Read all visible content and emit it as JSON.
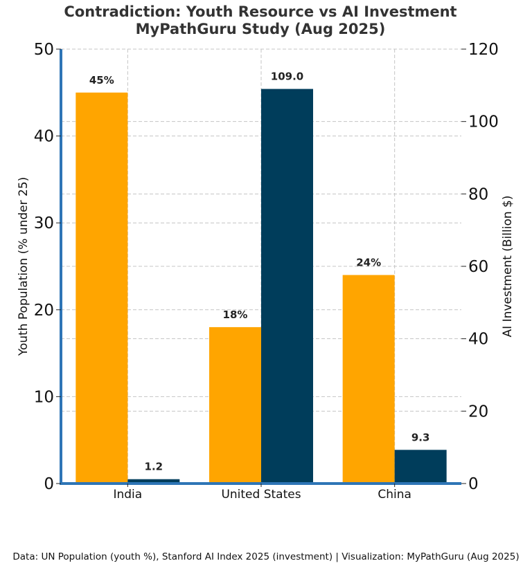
{
  "chart_data": {
    "type": "bar",
    "title_line1": "Contradiction: Youth Resource vs AI Investment",
    "title_line2": "MyPathGuru Study (Aug 2025)",
    "categories": [
      "India",
      "United States",
      "China"
    ],
    "series": [
      {
        "axis": "left",
        "color": "#FFA500",
        "values": [
          45,
          18,
          24
        ],
        "labels": [
          "45%",
          "18%",
          "24%"
        ]
      },
      {
        "axis": "right",
        "color": "#003D5B",
        "values": [
          1.2,
          109.0,
          9.3
        ],
        "labels": [
          "1.2",
          "109.0",
          "9.3"
        ]
      }
    ],
    "ylabel_left": "Youth Population (% under 25)",
    "ylabel_right": "AI Investment (Billion $)",
    "ylim_left": [
      0,
      50
    ],
    "ylim_right": [
      0,
      120
    ],
    "yticks_left": [
      0,
      10,
      20,
      30,
      40,
      50
    ],
    "yticks_right": [
      0,
      20,
      40,
      60,
      80,
      100,
      120
    ],
    "grid": true,
    "spine_color": "#2E75B6"
  },
  "footer": "Data: UN Population (youth %), Stanford AI Index 2025 (investment) | Visualization: MyPathGuru (Aug 2025)"
}
